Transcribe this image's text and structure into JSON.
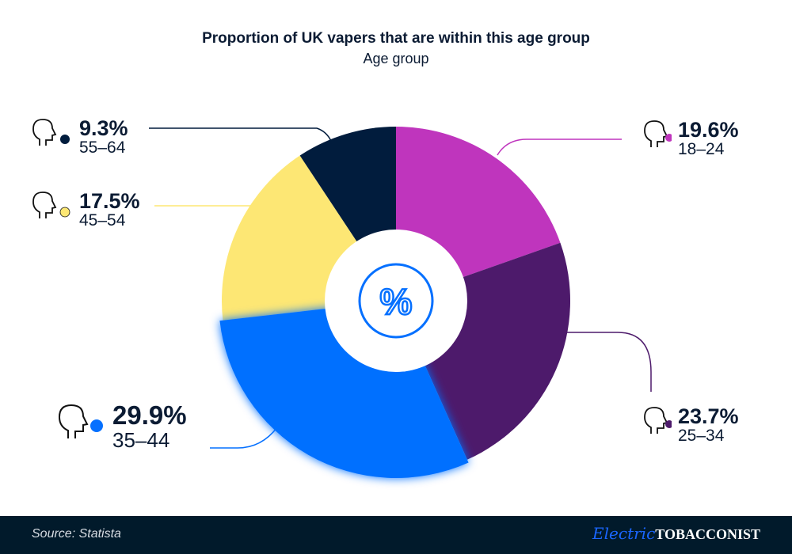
{
  "title": "Proportion of UK vapers that are within this age group",
  "subtitle": "Age group",
  "chart_data": {
    "type": "pie",
    "variant": "donut",
    "categories": [
      "18–24",
      "25–34",
      "35–44",
      "45–54",
      "55–64"
    ],
    "values": [
      19.6,
      23.7,
      29.9,
      17.5,
      9.3
    ],
    "labels": [
      "19.6%",
      "23.7%",
      "29.9%",
      "17.5%",
      "9.3%"
    ],
    "colors": [
      "#bf35bd",
      "#4d1a6b",
      "#0570ff",
      "#fde774",
      "#011c3d"
    ],
    "highlighted": "35–44",
    "center_icon": "percent-icon",
    "unit": "%"
  },
  "footer": {
    "source": "Source: Statista",
    "logo_script": "Electric",
    "logo_caps": "TOBACCONIST"
  }
}
